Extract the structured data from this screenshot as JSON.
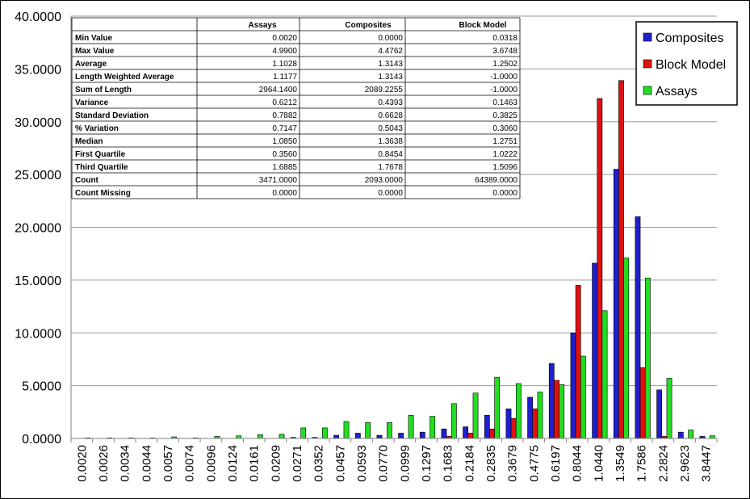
{
  "chart_data": {
    "type": "bar",
    "title": "",
    "xlabel": "",
    "ylabel": "",
    "ylim": [
      0,
      40
    ],
    "y_ticks": [
      "0.0000",
      "5.0000",
      "10.0000",
      "15.0000",
      "20.0000",
      "25.0000",
      "30.0000",
      "35.0000",
      "40.0000"
    ],
    "grid": true,
    "legend_position": "top-right",
    "categories": [
      "0.0020",
      "0.0026",
      "0.0034",
      "0.0044",
      "0.0057",
      "0.0074",
      "0.0096",
      "0.0124",
      "0.0161",
      "0.0209",
      "0.0271",
      "0.0352",
      "0.0457",
      "0.0593",
      "0.0770",
      "0.0999",
      "0.1297",
      "0.1683",
      "0.2184",
      "0.2835",
      "0.3679",
      "0.4775",
      "0.6197",
      "0.8044",
      "1.0440",
      "1.3549",
      "1.7586",
      "2.2824",
      "2.9623",
      "3.8447"
    ],
    "series": [
      {
        "name": "Composites",
        "color": "#1f1fd0",
        "values": [
          0,
          0,
          0,
          0,
          0,
          0,
          0,
          0,
          0,
          0,
          0.1,
          0.1,
          0.3,
          0.5,
          0.3,
          0.5,
          0.6,
          0.9,
          1.1,
          2.2,
          2.8,
          3.9,
          7.1,
          10.0,
          16.6,
          25.5,
          21.0,
          4.6,
          0.6,
          0.2
        ]
      },
      {
        "name": "Block Model",
        "color": "#e01010",
        "values": [
          0,
          0,
          0,
          0,
          0,
          0,
          0,
          0,
          0,
          0,
          0,
          0,
          0,
          0,
          0,
          0,
          0,
          0.2,
          0.5,
          0.9,
          1.9,
          2.8,
          5.5,
          14.5,
          32.2,
          33.9,
          6.7,
          0.2,
          0,
          0
        ]
      },
      {
        "name": "Assays",
        "color": "#22dd22",
        "values": [
          0.05,
          0.05,
          0.05,
          0.05,
          0.15,
          0.05,
          0.2,
          0.25,
          0.35,
          0.4,
          1.0,
          1.0,
          1.6,
          1.5,
          1.5,
          2.2,
          2.1,
          3.3,
          4.3,
          5.8,
          5.2,
          4.4,
          5.1,
          7.8,
          12.1,
          17.1,
          15.2,
          5.7,
          0.8,
          0.25
        ]
      }
    ]
  },
  "stats_table": {
    "headers": [
      "Assays",
      "Composites",
      "Block Model"
    ],
    "rows": [
      {
        "label": "Min Value",
        "values": [
          "0.0020",
          "0.0000",
          "0.0318"
        ]
      },
      {
        "label": "Max Value",
        "values": [
          "4.9900",
          "4.4762",
          "3.6748"
        ]
      },
      {
        "label": "Average",
        "values": [
          "1.1028",
          "1.3143",
          "1.2502"
        ]
      },
      {
        "label": "Length Weighted Average",
        "values": [
          "1.1177",
          "1.3143",
          "-1.0000"
        ]
      },
      {
        "label": "Sum of Length",
        "values": [
          "2964.1400",
          "2089.2255",
          "-1.0000"
        ]
      },
      {
        "label": "Variance",
        "values": [
          "0.6212",
          "0.4393",
          "0.1463"
        ]
      },
      {
        "label": "Standard Deviation",
        "values": [
          "0.7882",
          "0.6628",
          "0.3825"
        ]
      },
      {
        "label": "% Variation",
        "values": [
          "0.7147",
          "0.5043",
          "0.3060"
        ]
      },
      {
        "label": "Median",
        "values": [
          "1.0850",
          "1.3638",
          "1.2751"
        ]
      },
      {
        "label": "First Quartile",
        "values": [
          "0.3560",
          "0.8454",
          "1.0222"
        ]
      },
      {
        "label": "Third Quartile",
        "values": [
          "1.6885",
          "1.7678",
          "1.5096"
        ]
      },
      {
        "label": "Count",
        "values": [
          "3471.0000",
          "2093.0000",
          "64389.0000"
        ]
      },
      {
        "label": "Count Missing",
        "values": [
          "0.0000",
          "0.0000",
          "0.0000"
        ]
      }
    ]
  }
}
